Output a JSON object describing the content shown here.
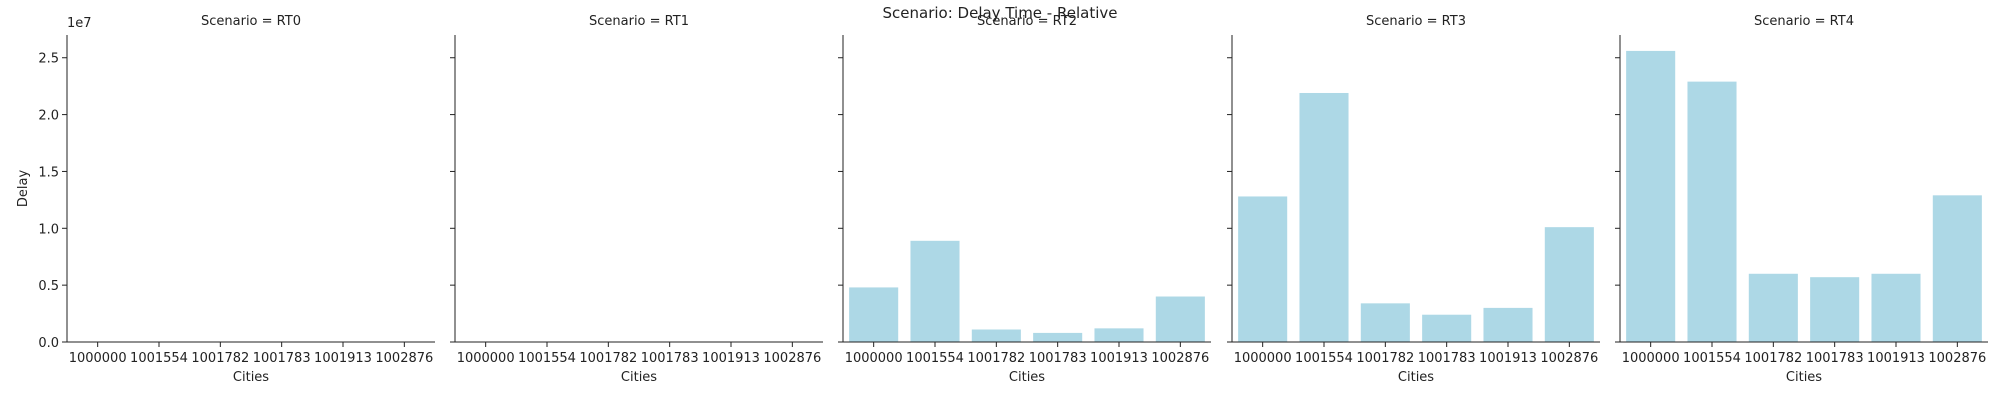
{
  "figure": {
    "suptitle": "Scenario: Delay Time - Relative",
    "sci_offset": "1e7",
    "bar_color": "#add8e6"
  },
  "chart_data": [
    {
      "type": "bar",
      "title": "Scenario = RT0",
      "xlabel": "Cities",
      "ylabel": "Delay",
      "categories": [
        "1000000",
        "1001554",
        "1001782",
        "1001783",
        "1001913",
        "1002876"
      ],
      "values": [
        0,
        0,
        0,
        0,
        0,
        0
      ],
      "ylim": [
        0,
        27000000
      ],
      "yticks": [
        "0.0",
        "0.5",
        "1.0",
        "1.5",
        "2.0",
        "2.5"
      ],
      "grid": false
    },
    {
      "type": "bar",
      "title": "Scenario = RT1",
      "xlabel": "Cities",
      "ylabel": "",
      "categories": [
        "1000000",
        "1001554",
        "1001782",
        "1001783",
        "1001913",
        "1002876"
      ],
      "values": [
        0,
        0,
        0,
        0,
        0,
        0
      ],
      "ylim": [
        0,
        27000000
      ],
      "grid": false
    },
    {
      "type": "bar",
      "title": "Scenario = RT2",
      "xlabel": "Cities",
      "ylabel": "",
      "categories": [
        "1000000",
        "1001554",
        "1001782",
        "1001783",
        "1001913",
        "1002876"
      ],
      "values": [
        4800000,
        8900000,
        1100000,
        800000,
        1200000,
        4000000
      ],
      "ylim": [
        0,
        27000000
      ],
      "grid": false
    },
    {
      "type": "bar",
      "title": "Scenario = RT3",
      "xlabel": "Cities",
      "ylabel": "",
      "categories": [
        "1000000",
        "1001554",
        "1001782",
        "1001783",
        "1001913",
        "1002876"
      ],
      "values": [
        12800000,
        21900000,
        3400000,
        2400000,
        3000000,
        10100000
      ],
      "ylim": [
        0,
        27000000
      ],
      "grid": false
    },
    {
      "type": "bar",
      "title": "Scenario = RT4",
      "xlabel": "Cities",
      "ylabel": "",
      "categories": [
        "1000000",
        "1001554",
        "1001782",
        "1001783",
        "1001913",
        "1002876"
      ],
      "values": [
        25600000,
        22900000,
        6000000,
        5700000,
        6000000,
        12900000
      ],
      "ylim": [
        0,
        27000000
      ],
      "grid": false
    }
  ]
}
